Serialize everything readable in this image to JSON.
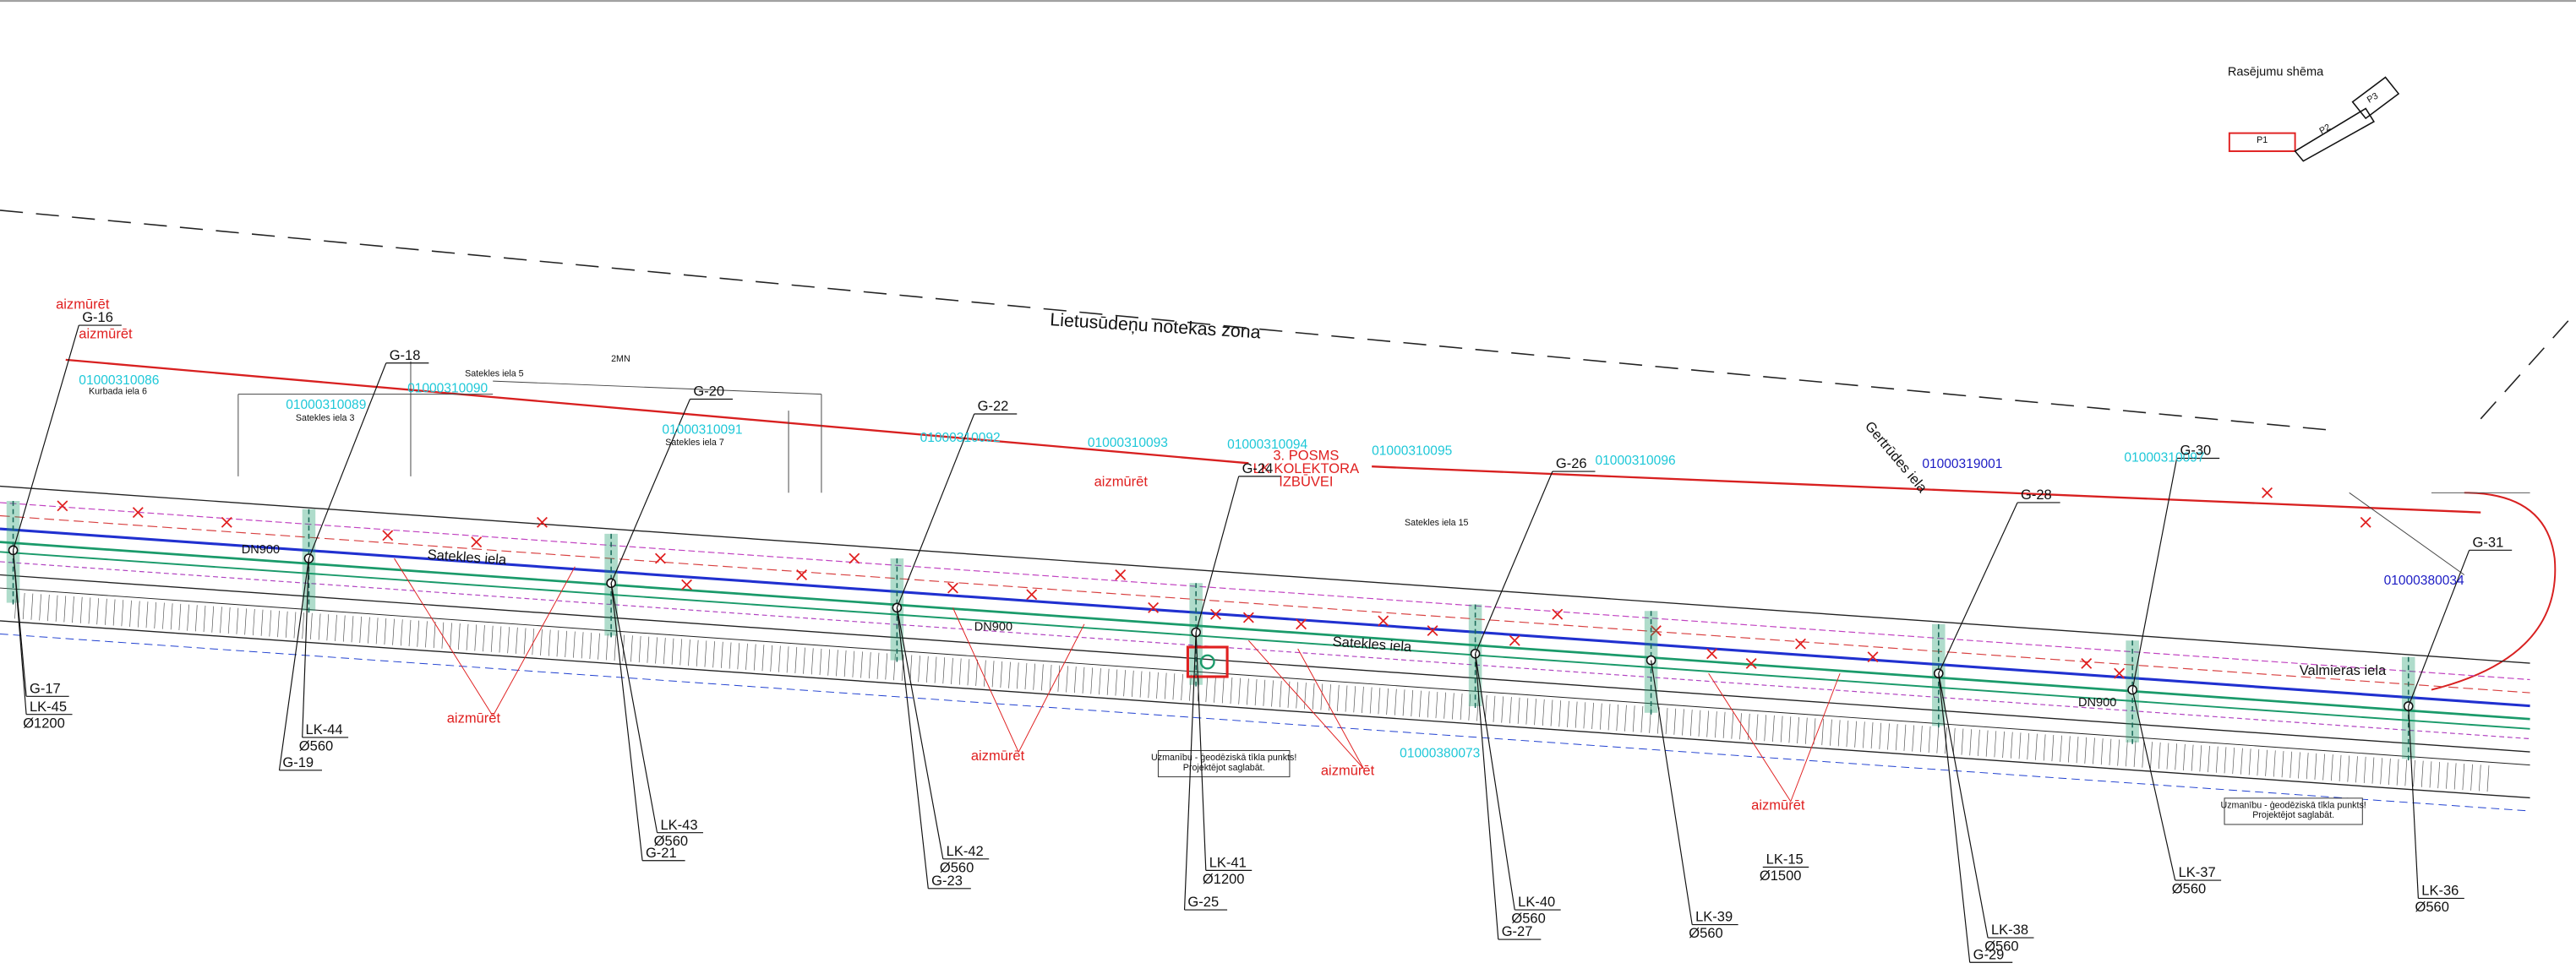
{
  "scheme": {
    "title": "Rasējumu shēma",
    "parts": [
      "P1",
      "P2",
      "P3"
    ]
  },
  "zone_label": "Lietusūdeņu notekas zona",
  "posms_note": [
    "3. POSMS",
    "LK KOLEKTORA",
    "IZBŪVEI"
  ],
  "aizmuret": [
    "aizmūrēt",
    "aizmūrēt",
    "aizmūrēt",
    "aizmūrēt",
    "aizmūrēt",
    "aizmūrēt",
    "aizmūrēt"
  ],
  "nodes": [
    "G-16",
    "G-17",
    "G-18",
    "G-19",
    "G-20",
    "G-21",
    "G-22",
    "G-23",
    "G-24",
    "G-25",
    "G-26",
    "G-27",
    "G-28",
    "G-29",
    "G-30",
    "G-31"
  ],
  "wells": [
    {
      "id": "LK-45",
      "diameter": "Ø1200"
    },
    {
      "id": "LK-44",
      "diameter": "Ø560"
    },
    {
      "id": "LK-43",
      "diameter": "Ø560"
    },
    {
      "id": "LK-42",
      "diameter": "Ø560"
    },
    {
      "id": "LK-41",
      "diameter": "Ø1200"
    },
    {
      "id": "LK-40",
      "diameter": "Ø560"
    },
    {
      "id": "LK-39",
      "diameter": "Ø560"
    },
    {
      "id": "LK-38",
      "diameter": "Ø560"
    },
    {
      "id": "LK-37",
      "diameter": "Ø560"
    },
    {
      "id": "LK-36",
      "diameter": "Ø560"
    },
    {
      "id": "LK-15",
      "diameter": "Ø1500"
    }
  ],
  "parcels": [
    "01000310086",
    "01000310089",
    "01000310090",
    "01000310091",
    "01000310092",
    "01000310093",
    "01000310094",
    "01000310095",
    "01000310096",
    "01000310097",
    "01000380073"
  ],
  "parcels_blue": [
    "01000319001",
    "01000380034"
  ],
  "addresses": [
    "Kurbada iela 6",
    "Satekles iela 3",
    "Satekles iela 5",
    "Satekles iela 7",
    "Satekles iela 15"
  ],
  "streets": [
    "Satekles iela",
    "Satekles iela",
    "Valmieras iela",
    "Gertrūdes iela"
  ],
  "pipes": [
    "DN900",
    "DN900",
    "DN900"
  ],
  "warnings": [
    {
      "line1": "Uzmanību - ģeodēziskā tīkla punkts!",
      "line2": "Projektējot saglabāt."
    },
    {
      "line1": "Uzmanību - ģeodēziskā tīkla punkts!",
      "line2": "Projektējot saglabāt."
    }
  ],
  "misc": [
    "2MN"
  ]
}
